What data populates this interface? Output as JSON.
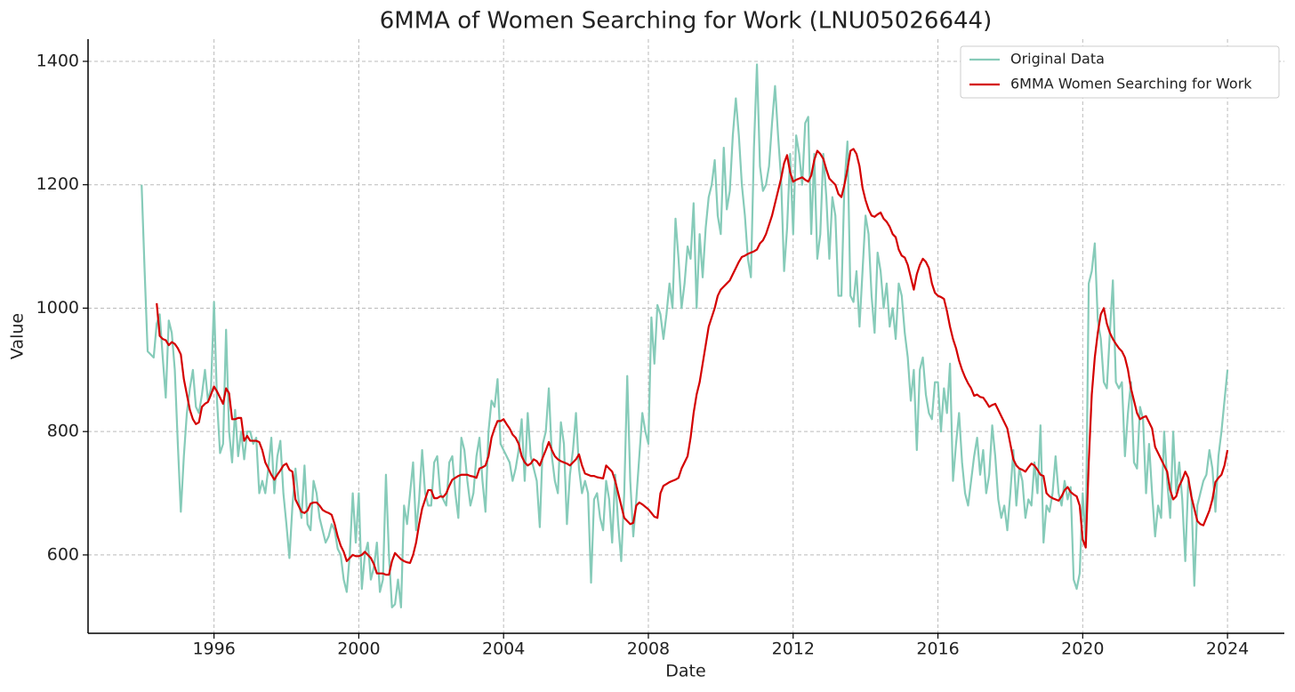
{
  "chart_data": {
    "type": "line",
    "title": "6MMA of Women Searching for Work (LNU05026644)",
    "xlabel": "Date",
    "ylabel": "Value",
    "x": [
      "1994-01",
      "1994-02",
      "1994-03",
      "1994-04",
      "1994-05",
      "1994-06",
      "1994-07",
      "1994-08",
      "1994-09",
      "1994-10",
      "1994-11",
      "1994-12",
      "1995-01",
      "1995-02",
      "1995-03",
      "1995-04",
      "1995-05",
      "1995-06",
      "1995-07",
      "1995-08",
      "1995-09",
      "1995-10",
      "1995-11",
      "1995-12",
      "1996-01",
      "1996-02",
      "1996-03",
      "1996-04",
      "1996-05",
      "1996-06",
      "1996-07",
      "1996-08",
      "1996-09",
      "1996-10",
      "1996-11",
      "1996-12",
      "1997-01",
      "1997-02",
      "1997-03",
      "1997-04",
      "1997-05",
      "1997-06",
      "1997-07",
      "1997-08",
      "1997-09",
      "1997-10",
      "1997-11",
      "1997-12",
      "1998-01",
      "1998-02",
      "1998-03",
      "1998-04",
      "1998-05",
      "1998-06",
      "1998-07",
      "1998-08",
      "1998-09",
      "1998-10",
      "1998-11",
      "1998-12",
      "1999-01",
      "1999-02",
      "1999-03",
      "1999-04",
      "1999-05",
      "1999-06",
      "1999-07",
      "1999-08",
      "1999-09",
      "1999-10",
      "1999-11",
      "1999-12",
      "2000-01",
      "2000-02",
      "2000-03",
      "2000-04",
      "2000-05",
      "2000-06",
      "2000-07",
      "2000-08",
      "2000-09",
      "2000-10",
      "2000-11",
      "2000-12",
      "2001-01",
      "2001-02",
      "2001-03",
      "2001-04",
      "2001-05",
      "2001-06",
      "2001-07",
      "2001-08",
      "2001-09",
      "2001-10",
      "2001-11",
      "2001-12",
      "2002-01",
      "2002-02",
      "2002-03",
      "2002-04",
      "2002-05",
      "2002-06",
      "2002-07",
      "2002-08",
      "2002-09",
      "2002-10",
      "2002-11",
      "2002-12",
      "2003-01",
      "2003-02",
      "2003-03",
      "2003-04",
      "2003-05",
      "2003-06",
      "2003-07",
      "2003-08",
      "2003-09",
      "2003-10",
      "2003-11",
      "2003-12",
      "2004-01",
      "2004-02",
      "2004-03",
      "2004-04",
      "2004-05",
      "2004-06",
      "2004-07",
      "2004-08",
      "2004-09",
      "2004-10",
      "2004-11",
      "2004-12",
      "2005-01",
      "2005-02",
      "2005-03",
      "2005-04",
      "2005-05",
      "2005-06",
      "2005-07",
      "2005-08",
      "2005-09",
      "2005-10",
      "2005-11",
      "2005-12",
      "2006-01",
      "2006-02",
      "2006-03",
      "2006-04",
      "2006-05",
      "2006-06",
      "2006-07",
      "2006-08",
      "2006-09",
      "2006-10",
      "2006-11",
      "2006-12",
      "2007-01",
      "2007-02",
      "2007-03",
      "2007-04",
      "2007-05",
      "2007-06",
      "2007-07",
      "2007-08",
      "2007-09",
      "2007-10",
      "2007-11",
      "2007-12",
      "2008-01",
      "2008-02",
      "2008-03",
      "2008-04",
      "2008-05",
      "2008-06",
      "2008-07",
      "2008-08",
      "2008-09",
      "2008-10",
      "2008-11",
      "2008-12",
      "2009-01",
      "2009-02",
      "2009-03",
      "2009-04",
      "2009-05",
      "2009-06",
      "2009-07",
      "2009-08",
      "2009-09",
      "2009-10",
      "2009-11",
      "2009-12",
      "2010-01",
      "2010-02",
      "2010-03",
      "2010-04",
      "2010-05",
      "2010-06",
      "2010-07",
      "2010-08",
      "2010-09",
      "2010-10",
      "2010-11",
      "2010-12",
      "2011-01",
      "2011-02",
      "2011-03",
      "2011-04",
      "2011-05",
      "2011-06",
      "2011-07",
      "2011-08",
      "2011-09",
      "2011-10",
      "2011-11",
      "2011-12",
      "2012-01",
      "2012-02",
      "2012-03",
      "2012-04",
      "2012-05",
      "2012-06",
      "2012-07",
      "2012-08",
      "2012-09",
      "2012-10",
      "2012-11",
      "2012-12",
      "2013-01",
      "2013-02",
      "2013-03",
      "2013-04",
      "2013-05",
      "2013-06",
      "2013-07",
      "2013-08",
      "2013-09",
      "2013-10",
      "2013-11",
      "2013-12",
      "2014-01",
      "2014-02",
      "2014-03",
      "2014-04",
      "2014-05",
      "2014-06",
      "2014-07",
      "2014-08",
      "2014-09",
      "2014-10",
      "2014-11",
      "2014-12",
      "2015-01",
      "2015-02",
      "2015-03",
      "2015-04",
      "2015-05",
      "2015-06",
      "2015-07",
      "2015-08",
      "2015-09",
      "2015-10",
      "2015-11",
      "2015-12",
      "2016-01",
      "2016-02",
      "2016-03",
      "2016-04",
      "2016-05",
      "2016-06",
      "2016-07",
      "2016-08",
      "2016-09",
      "2016-10",
      "2016-11",
      "2016-12",
      "2017-01",
      "2017-02",
      "2017-03",
      "2017-04",
      "2017-05",
      "2017-06",
      "2017-07",
      "2017-08",
      "2017-09",
      "2017-10",
      "2017-11",
      "2017-12",
      "2018-01",
      "2018-02",
      "2018-03",
      "2018-04",
      "2018-05",
      "2018-06",
      "2018-07",
      "2018-08",
      "2018-09",
      "2018-10",
      "2018-11",
      "2018-12",
      "2019-01",
      "2019-02",
      "2019-03",
      "2019-04",
      "2019-05",
      "2019-06",
      "2019-07",
      "2019-08",
      "2019-09",
      "2019-10",
      "2019-11",
      "2019-12",
      "2020-01",
      "2020-02",
      "2020-03",
      "2020-04",
      "2020-05",
      "2020-06",
      "2020-07",
      "2020-08",
      "2020-09",
      "2020-10",
      "2020-11",
      "2020-12",
      "2021-01",
      "2021-02",
      "2021-03",
      "2021-04",
      "2021-05",
      "2021-06",
      "2021-07",
      "2021-08",
      "2021-09",
      "2021-10",
      "2021-11",
      "2021-12",
      "2022-01",
      "2022-02",
      "2022-03",
      "2022-04",
      "2022-05",
      "2022-06",
      "2022-07",
      "2022-08",
      "2022-09",
      "2022-10",
      "2022-11",
      "2022-12",
      "2023-01",
      "2023-02",
      "2023-03",
      "2023-04",
      "2023-05",
      "2023-06",
      "2023-07",
      "2023-08",
      "2023-09",
      "2023-10",
      "2023-11",
      "2023-12",
      "2024-01"
    ],
    "series": [
      {
        "name": "Original Data",
        "color": "#86cbb9",
        "values": [
          1200,
          1060,
          930,
          925,
          920,
          975,
          990,
          920,
          855,
          980,
          960,
          900,
          780,
          670,
          760,
          830,
          870,
          900,
          840,
          830,
          860,
          900,
          850,
          870,
          1010,
          850,
          765,
          780,
          965,
          800,
          750,
          835,
          760,
          800,
          755,
          800,
          800,
          780,
          790,
          700,
          720,
          700,
          740,
          790,
          700,
          760,
          785,
          700,
          650,
          595,
          680,
          740,
          690,
          660,
          745,
          650,
          640,
          720,
          700,
          660,
          640,
          620,
          630,
          650,
          640,
          610,
          600,
          560,
          540,
          600,
          700,
          620,
          700,
          545,
          600,
          620,
          560,
          580,
          620,
          540,
          560,
          730,
          600,
          515,
          520,
          560,
          515,
          680,
          650,
          700,
          750,
          640,
          690,
          770,
          700,
          680,
          680,
          750,
          760,
          700,
          690,
          680,
          750,
          760,
          700,
          660,
          790,
          770,
          720,
          680,
          700,
          760,
          790,
          720,
          670,
          800,
          850,
          840,
          885,
          780,
          770,
          760,
          750,
          720,
          740,
          770,
          820,
          720,
          830,
          760,
          740,
          720,
          645,
          780,
          800,
          870,
          760,
          720,
          700,
          815,
          780,
          650,
          730,
          770,
          830,
          740,
          700,
          720,
          700,
          555,
          690,
          700,
          660,
          640,
          720,
          690,
          620,
          730,
          650,
          590,
          700,
          890,
          720,
          630,
          690,
          760,
          830,
          800,
          780,
          985,
          910,
          1005,
          990,
          950,
          990,
          1040,
          1000,
          1145,
          1080,
          1000,
          1040,
          1100,
          1080,
          1170,
          1000,
          1120,
          1050,
          1130,
          1180,
          1200,
          1240,
          1150,
          1120,
          1260,
          1160,
          1190,
          1280,
          1340,
          1280,
          1200,
          1150,
          1080,
          1050,
          1260,
          1395,
          1230,
          1190,
          1200,
          1230,
          1300,
          1360,
          1280,
          1210,
          1060,
          1130,
          1250,
          1120,
          1280,
          1250,
          1200,
          1300,
          1310,
          1120,
          1250,
          1080,
          1120,
          1250,
          1180,
          1080,
          1180,
          1150,
          1020,
          1020,
          1200,
          1270,
          1020,
          1010,
          1060,
          970,
          1060,
          1150,
          1120,
          1020,
          960,
          1090,
          1060,
          1000,
          1040,
          970,
          1000,
          950,
          1040,
          1020,
          960,
          920,
          850,
          900,
          770,
          900,
          920,
          860,
          830,
          820,
          880,
          880,
          800,
          870,
          830,
          910,
          720,
          780,
          830,
          750,
          700,
          680,
          720,
          760,
          790,
          730,
          770,
          700,
          730,
          810,
          760,
          690,
          660,
          680,
          640,
          700,
          770,
          680,
          740,
          720,
          660,
          690,
          680,
          750,
          700,
          810,
          620,
          680,
          670,
          700,
          760,
          700,
          680,
          720,
          690,
          710,
          560,
          545,
          570,
          700,
          620,
          1040,
          1060,
          1105,
          980,
          950,
          880,
          870,
          960,
          1045,
          880,
          870,
          880,
          760,
          830,
          880,
          750,
          740,
          840,
          820,
          700,
          780,
          700,
          630,
          680,
          660,
          800,
          720,
          660,
          800,
          700,
          750,
          690,
          590,
          720,
          700,
          550,
          680,
          700,
          720,
          730,
          770,
          740,
          670,
          760,
          800,
          850,
          900
        ]
      },
      {
        "name": "6MMA Women Searching for Work",
        "color": "#d40000",
        "values": [
          null,
          null,
          null,
          null,
          null,
          1008,
          955,
          950,
          948,
          940,
          945,
          942,
          935,
          925,
          885,
          860,
          835,
          820,
          812,
          815,
          840,
          845,
          848,
          860,
          873,
          865,
          855,
          845,
          870,
          862,
          820,
          820,
          822,
          822,
          785,
          793,
          785,
          785,
          785,
          783,
          770,
          750,
          740,
          730,
          722,
          730,
          737,
          745,
          748,
          738,
          735,
          690,
          680,
          670,
          668,
          672,
          683,
          685,
          685,
          680,
          673,
          670,
          668,
          665,
          650,
          630,
          615,
          605,
          590,
          595,
          600,
          598,
          598,
          600,
          605,
          600,
          595,
          585,
          570,
          570,
          570,
          568,
          568,
          590,
          603,
          598,
          593,
          590,
          588,
          587,
          600,
          620,
          650,
          675,
          690,
          705,
          705,
          692,
          692,
          695,
          694,
          700,
          712,
          722,
          725,
          728,
          730,
          730,
          730,
          728,
          727,
          725,
          740,
          742,
          745,
          760,
          790,
          805,
          817,
          817,
          820,
          812,
          805,
          795,
          790,
          780,
          760,
          750,
          745,
          748,
          755,
          752,
          745,
          758,
          770,
          783,
          770,
          760,
          755,
          752,
          750,
          748,
          745,
          750,
          755,
          763,
          745,
          732,
          730,
          728,
          728,
          726,
          725,
          724,
          745,
          740,
          735,
          720,
          700,
          680,
          660,
          655,
          650,
          652,
          680,
          685,
          682,
          678,
          674,
          668,
          662,
          660,
          700,
          712,
          715,
          718,
          720,
          722,
          725,
          740,
          750,
          760,
          790,
          830,
          860,
          880,
          910,
          940,
          970,
          985,
          1000,
          1020,
          1030,
          1035,
          1040,
          1045,
          1055,
          1065,
          1075,
          1083,
          1085,
          1088,
          1090,
          1092,
          1095,
          1105,
          1110,
          1120,
          1135,
          1150,
          1170,
          1190,
          1210,
          1235,
          1248,
          1220,
          1205,
          1208,
          1210,
          1212,
          1208,
          1205,
          1215,
          1240,
          1255,
          1250,
          1242,
          1225,
          1210,
          1205,
          1200,
          1185,
          1180,
          1200,
          1225,
          1255,
          1258,
          1250,
          1230,
          1195,
          1175,
          1160,
          1150,
          1148,
          1152,
          1155,
          1145,
          1140,
          1132,
          1120,
          1115,
          1095,
          1085,
          1082,
          1070,
          1050,
          1030,
          1055,
          1070,
          1080,
          1075,
          1065,
          1040,
          1025,
          1020,
          1018,
          1015,
          995,
          970,
          950,
          935,
          915,
          900,
          888,
          878,
          870,
          858,
          860,
          856,
          855,
          848,
          840,
          843,
          845,
          835,
          825,
          815,
          805,
          780,
          755,
          745,
          740,
          738,
          735,
          742,
          748,
          745,
          738,
          730,
          728,
          700,
          695,
          692,
          690,
          688,
          695,
          705,
          710,
          702,
          698,
          695,
          680,
          625,
          612,
          750,
          860,
          920,
          960,
          990,
          1000,
          975,
          960,
          950,
          942,
          935,
          930,
          920,
          900,
          870,
          850,
          830,
          820,
          823,
          825,
          815,
          805,
          775,
          765,
          755,
          745,
          735,
          705,
          690,
          695,
          712,
          722,
          735,
          725,
          695,
          675,
          655,
          650,
          648,
          660,
          672,
          690,
          718,
          725,
          730,
          745,
          770
        ]
      }
    ],
    "xlim": [
      1992.52,
      2025.57
    ],
    "xticks": [
      1996,
      2000,
      2004,
      2008,
      2012,
      2016,
      2020,
      2024
    ],
    "ylim": [
      473,
      1436
    ],
    "yticks": [
      600,
      800,
      1000,
      1200,
      1400
    ],
    "grid": true,
    "legend": "upper right"
  }
}
